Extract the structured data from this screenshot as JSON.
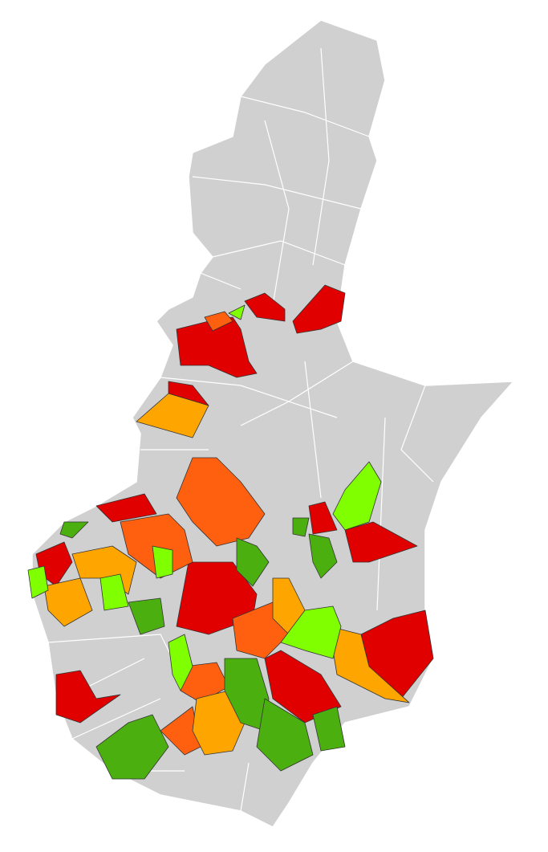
{
  "map": {
    "palette": [
      "#d0d0d0",
      "#e00000",
      "#ff6010",
      "#ffa500",
      "#80ff00",
      "#4caf10"
    ]
  }
}
